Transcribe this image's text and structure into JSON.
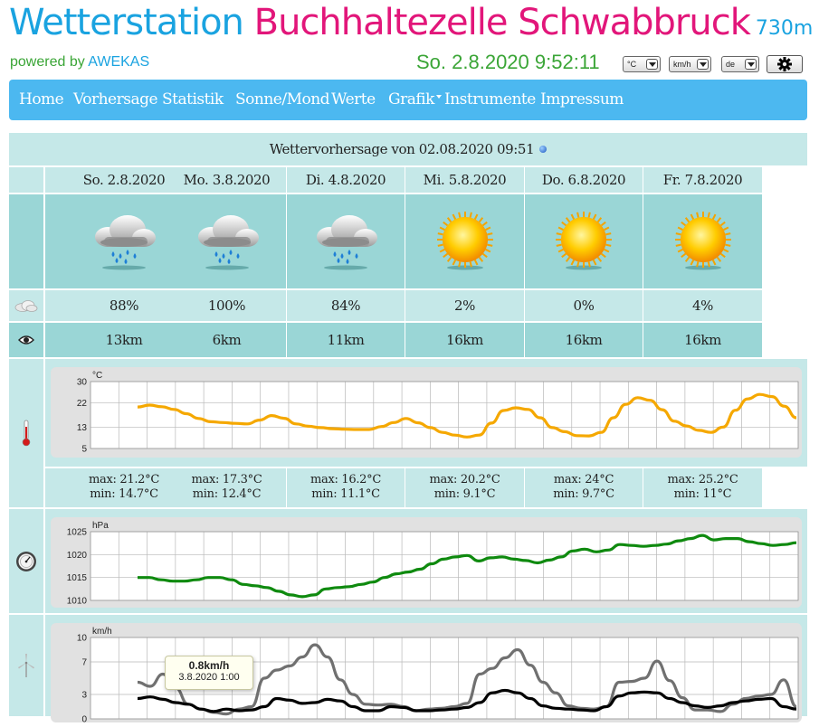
{
  "header": {
    "title_part1": "Wetterstation",
    "title_part2": "Buchhaltezelle Schwabbruck",
    "altitude": "730m",
    "powered_by_prefix": "powered by",
    "powered_by_link": "AWEKAS",
    "datetime": "So. 2.8.2020 9:52:11",
    "unit_temp": "°C",
    "unit_wind": "km/h",
    "language": "de"
  },
  "nav": [
    "Home",
    "Vorhersage",
    "Statistik",
    "Sonne/Mond",
    "Werte",
    "Grafik",
    "Instrumente",
    "Impressum"
  ],
  "forecast": {
    "title": "Wettervorhersage von 02.08.2020 09:51",
    "days": [
      {
        "date": "So. 2.8.2020",
        "icon": "rain-cloud-icon",
        "cloud": "88%",
        "visibility": "13km",
        "max": "max: 21.2°C",
        "min": "min: 14.7°C"
      },
      {
        "date": "Mo. 3.8.2020",
        "icon": "rain-cloud-icon",
        "cloud": "100%",
        "visibility": "6km",
        "max": "max: 17.3°C",
        "min": "min: 12.4°C"
      },
      {
        "date": "Di. 4.8.2020",
        "icon": "rain-cloud-icon",
        "cloud": "84%",
        "visibility": "11km",
        "max": "max: 16.2°C",
        "min": "min: 11.1°C"
      },
      {
        "date": "Mi. 5.8.2020",
        "icon": "sun-icon",
        "cloud": "2%",
        "visibility": "16km",
        "max": "max: 20.2°C",
        "min": "min: 9.1°C"
      },
      {
        "date": "Do. 6.8.2020",
        "icon": "sun-icon",
        "cloud": "0%",
        "visibility": "16km",
        "max": "max: 24°C",
        "min": "min: 9.7°C"
      },
      {
        "date": "Fr. 7.8.2020",
        "icon": "sun-icon",
        "cloud": "4%",
        "visibility": "16km",
        "max": "max: 25.2°C",
        "min": "min: 11°C"
      }
    ]
  },
  "colors": {
    "temp": "#f5a800",
    "pressure": "#0f8a0f",
    "wind_gust": "#707070",
    "wind_avg": "#000000"
  },
  "chart_data": [
    {
      "type": "line",
      "ylabel": "°C",
      "yticks": [
        "30",
        "22",
        "13",
        "5"
      ],
      "ylim": [
        5,
        30
      ],
      "series": [
        {
          "values": [
            20.5,
            21.2,
            20.6,
            19.6,
            18.0,
            16.2,
            15.0,
            14.7,
            14.4,
            14.2,
            15.6,
            17.3,
            16.3,
            14.2,
            13.3,
            12.8,
            12.4,
            12.2,
            12.1,
            12.1,
            13.2,
            14.7,
            16.2,
            14.6,
            12.8,
            11.0,
            10.0,
            9.3,
            10.0,
            14.5,
            19.2,
            20.2,
            19.6,
            16.5,
            12.8,
            11.3,
            9.8,
            9.7,
            11.0,
            16.5,
            21.5,
            24.0,
            23.0,
            19.5,
            15.2,
            13.4,
            11.8,
            11.0,
            13.0,
            19.3,
            23.5,
            25.2,
            24.4,
            20.8,
            16.5
          ]
        }
      ]
    },
    {
      "type": "line",
      "ylabel": "hPa",
      "yticks": [
        "1025",
        "1020",
        "1015",
        "1010"
      ],
      "ylim": [
        1010,
        1025
      ],
      "series": [
        {
          "values": [
            1015.0,
            1015.0,
            1014.5,
            1014.2,
            1014.2,
            1014.5,
            1015.0,
            1015.0,
            1014.5,
            1013.5,
            1013.2,
            1012.8,
            1012.0,
            1011.2,
            1010.8,
            1011.2,
            1012.5,
            1012.8,
            1013.0,
            1013.5,
            1014.0,
            1015.0,
            1015.8,
            1016.2,
            1016.8,
            1018.0,
            1019.0,
            1019.5,
            1019.8,
            1018.6,
            1019.3,
            1019.5,
            1019.0,
            1018.7,
            1018.2,
            1018.8,
            1019.5,
            1020.8,
            1021.2,
            1020.6,
            1021.0,
            1022.2,
            1022.0,
            1021.8,
            1022.0,
            1022.3,
            1023.0,
            1023.5,
            1024.2,
            1023.2,
            1023.5,
            1023.5,
            1022.8,
            1022.4,
            1022.0,
            1022.2,
            1022.6
          ]
        }
      ]
    },
    {
      "type": "line",
      "ylabel": "km/h",
      "yticks": [
        "10",
        "7",
        "3",
        "0"
      ],
      "ylim": [
        0,
        10
      ],
      "tooltip": {
        "value": "0.8km/h",
        "time": "3.8.2020 1:00"
      },
      "series": [
        {
          "values": [
            4.5,
            4.0,
            5.5,
            3.8,
            1.8,
            1.2,
            0.8,
            0.6,
            1.2,
            1.5,
            5.0,
            6.0,
            6.5,
            7.6,
            9.1,
            7.6,
            4.8,
            3.0,
            1.8,
            1.7,
            1.8,
            1.5,
            1.0,
            1.2,
            1.3,
            1.5,
            1.9,
            5.5,
            6.2,
            7.5,
            8.5,
            6.6,
            4.5,
            3.2,
            1.6,
            1.3,
            1.2,
            1.5,
            4.5,
            4.6,
            5.0,
            7.1,
            4.7,
            2.6,
            1.1,
            1.1,
            0.9,
            1.8,
            2.5,
            2.8,
            3.0,
            4.8,
            1.5
          ]
        },
        {
          "values": [
            2.5,
            2.7,
            2.4,
            2.0,
            1.8,
            1.2,
            0.9,
            1.2,
            1.0,
            1.1,
            1.5,
            2.5,
            2.3,
            1.9,
            2.0,
            2.4,
            2.2,
            1.5,
            1.0,
            1.0,
            1.5,
            1.4,
            1.0,
            1.0,
            1.1,
            1.2,
            1.4,
            2.0,
            3.2,
            3.5,
            3.2,
            2.5,
            1.6,
            1.3,
            1.2,
            1.1,
            1.0,
            1.5,
            2.8,
            3.2,
            3.3,
            3.2,
            2.5,
            2.0,
            1.6,
            1.4,
            1.6,
            2.0,
            2.2,
            2.4,
            2.5,
            1.5,
            1.2
          ]
        }
      ]
    }
  ]
}
